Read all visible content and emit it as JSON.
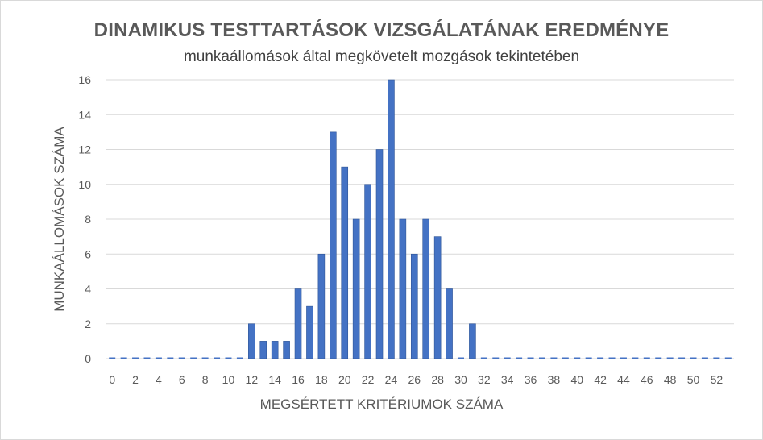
{
  "chart_data": {
    "type": "bar",
    "title": "DINAMIKUS TESTTARTÁSOK VIZSGÁLATÁNAK EREDMÉNYE",
    "subtitle": "munkaállomások által megkövetelt mozgások tekintetében",
    "xlabel": "MEGSÉRTETT KRITÉRIUMOK SZÁMA",
    "ylabel": "MUNKAÁLLOMÁSOK SZÁMA",
    "categories": [
      0,
      1,
      2,
      3,
      4,
      5,
      6,
      7,
      8,
      9,
      10,
      11,
      12,
      13,
      14,
      15,
      16,
      17,
      18,
      19,
      20,
      21,
      22,
      23,
      24,
      25,
      26,
      27,
      28,
      29,
      30,
      31,
      32,
      33,
      34,
      35,
      36,
      37,
      38,
      39,
      40,
      41,
      42,
      43,
      44,
      45,
      46,
      47,
      48,
      49,
      50,
      51,
      52,
      53
    ],
    "values": [
      0,
      0,
      0,
      0,
      0,
      0,
      0,
      0,
      0,
      0,
      0,
      0,
      2,
      1,
      1,
      1,
      4,
      3,
      6,
      13,
      11,
      8,
      10,
      12,
      16,
      8,
      6,
      8,
      7,
      4,
      0,
      2,
      0,
      0,
      0,
      0,
      0,
      0,
      0,
      0,
      0,
      0,
      0,
      0,
      0,
      0,
      0,
      0,
      0,
      0,
      0,
      0,
      0,
      0
    ],
    "x_tick_labels": [
      "0",
      "2",
      "4",
      "6",
      "8",
      "10",
      "12",
      "14",
      "16",
      "18",
      "20",
      "22",
      "24",
      "26",
      "28",
      "30",
      "32",
      "34",
      "36",
      "38",
      "40",
      "42",
      "44",
      "46",
      "48",
      "50",
      "52"
    ],
    "y_tick_labels": [
      "0",
      "2",
      "4",
      "6",
      "8",
      "10",
      "12",
      "14",
      "16"
    ],
    "ylim": [
      0,
      16
    ],
    "grid": true,
    "legend": "none",
    "bar_color": "#4472c4",
    "bar_edge_color": "#2f5597",
    "grid_color": "#d9d9d9"
  }
}
